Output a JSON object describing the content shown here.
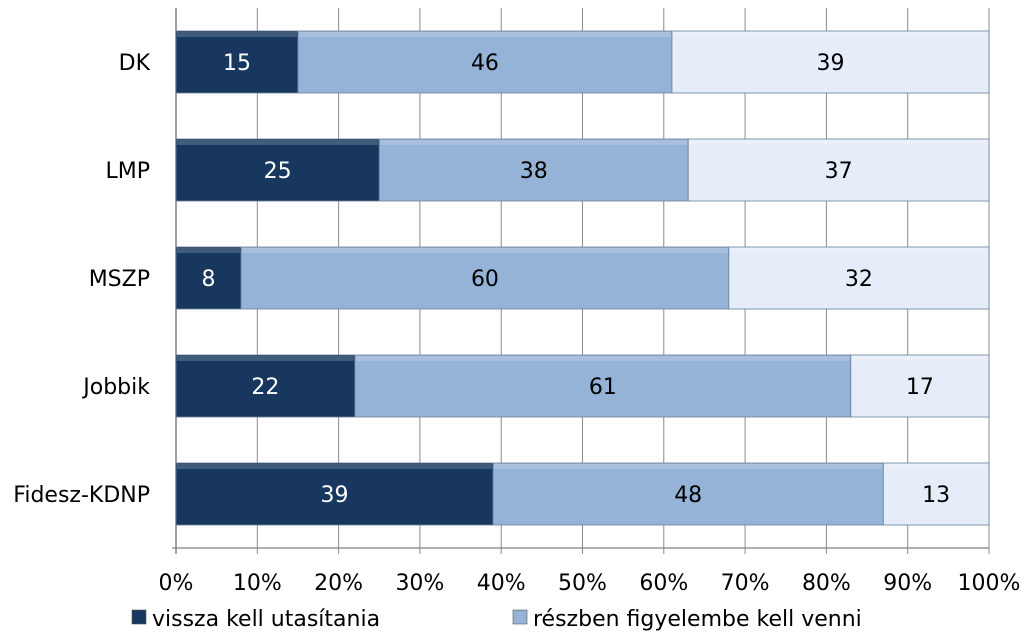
{
  "chart_data": {
    "type": "bar",
    "orientation": "horizontal",
    "stacked": "percent",
    "categories": [
      "DK",
      "LMP",
      "MSZP",
      "Jobbik",
      "Fidesz-KDNP"
    ],
    "series": [
      {
        "name": "vissza kell utasítania",
        "values": [
          15,
          25,
          8,
          22,
          39
        ],
        "color": "#17375e",
        "label_color": "#ffffff"
      },
      {
        "name": "részben figyelembe kell venni",
        "values": [
          46,
          38,
          60,
          61,
          48
        ],
        "color": "#95b3d7",
        "label_color": "#000000"
      },
      {
        "name": "",
        "values": [
          39,
          37,
          32,
          17,
          13
        ],
        "color": "#e4edf8",
        "label_color": "#000000"
      }
    ],
    "xlim": [
      0,
      100
    ],
    "xticks": [
      "0%",
      "10%",
      "20%",
      "30%",
      "40%",
      "50%",
      "60%",
      "70%",
      "80%",
      "90%",
      "100%"
    ],
    "grid": true,
    "legend_position": "bottom"
  }
}
